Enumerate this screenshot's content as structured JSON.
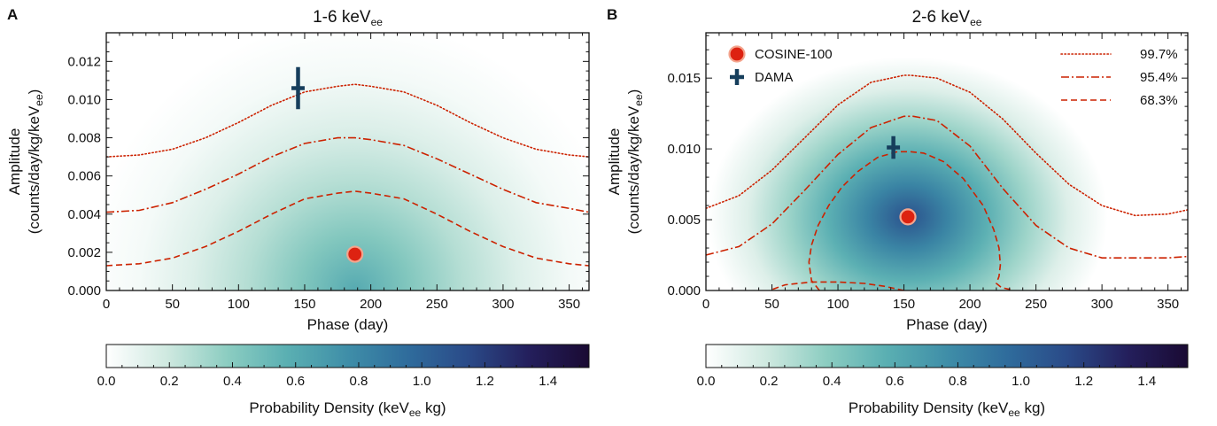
{
  "chart_data": [
    {
      "panel": "A",
      "type": "heatmap",
      "title": "1-6 keV",
      "title_sub": "ee",
      "xlabel": "Phase (day)",
      "ylabel_line1": "Amplitude",
      "ylabel_line2": "(counts/day/kg/keV",
      "ylabel_sub": "ee",
      "ylabel_tail": ")",
      "xlim": [
        0,
        365
      ],
      "ylim": [
        0,
        0.0135
      ],
      "xticks": [
        0,
        50,
        100,
        150,
        200,
        250,
        300,
        350
      ],
      "yticks": [
        0.0,
        0.002,
        0.004,
        0.006,
        0.008,
        0.01,
        0.012
      ],
      "ytick_decimals": 3,
      "density_peak": {
        "phase": 188,
        "amplitude": 0.0,
        "density": 0.6
      },
      "contours": [
        {
          "level": "99.7%",
          "style": "dotted",
          "phase": [
            0,
            25,
            50,
            75,
            100,
            125,
            150,
            175,
            188,
            200,
            225,
            250,
            275,
            300,
            325,
            350,
            365
          ],
          "amplitude": [
            0.007,
            0.0071,
            0.0074,
            0.008,
            0.0088,
            0.0097,
            0.0104,
            0.0107,
            0.0108,
            0.0107,
            0.0104,
            0.0097,
            0.0088,
            0.008,
            0.0074,
            0.0071,
            0.007
          ]
        },
        {
          "level": "95.4%",
          "style": "dashdot",
          "phase": [
            0,
            25,
            50,
            75,
            100,
            125,
            150,
            175,
            188,
            200,
            225,
            250,
            275,
            300,
            325,
            350,
            365
          ],
          "amplitude": [
            0.0041,
            0.0042,
            0.0046,
            0.0053,
            0.0061,
            0.007,
            0.0077,
            0.008,
            0.008,
            0.0079,
            0.0076,
            0.0069,
            0.0061,
            0.0053,
            0.0046,
            0.0043,
            0.0041
          ]
        },
        {
          "level": "68.3%",
          "style": "dashed",
          "phase": [
            0,
            25,
            50,
            75,
            100,
            125,
            150,
            175,
            188,
            200,
            225,
            250,
            275,
            300,
            325,
            350,
            365
          ],
          "amplitude": [
            0.0013,
            0.0014,
            0.0017,
            0.0023,
            0.0031,
            0.004,
            0.0048,
            0.0051,
            0.0052,
            0.0051,
            0.0048,
            0.004,
            0.0031,
            0.0023,
            0.0017,
            0.0014,
            0.0013
          ]
        }
      ],
      "points": [
        {
          "name": "COSINE-100",
          "marker": "circle",
          "phase": 188,
          "amplitude": 0.0019
        },
        {
          "name": "DAMA",
          "marker": "cross",
          "phase": 145,
          "amplitude": 0.0106,
          "xerr": 2,
          "yerr": 0.0011
        }
      ],
      "colorbar": {
        "label": "Probability Density (keV",
        "label_sub": "ee",
        "label_tail": " kg)",
        "range": [
          0,
          1.53
        ],
        "ticks": [
          0.0,
          0.2,
          0.4,
          0.6,
          0.8,
          1.0,
          1.2,
          1.4
        ]
      }
    },
    {
      "panel": "B",
      "type": "heatmap",
      "title": "2-6 keV",
      "title_sub": "ee",
      "xlabel": "Phase (day)",
      "ylabel_line1": "Amplitude",
      "ylabel_line2": "(counts/day/kg/keV",
      "ylabel_sub": "ee",
      "ylabel_tail": ")",
      "xlim": [
        0,
        365
      ],
      "ylim": [
        0,
        0.0182
      ],
      "xticks": [
        0,
        50,
        100,
        150,
        200,
        250,
        300,
        350
      ],
      "yticks": [
        0.0,
        0.005,
        0.01,
        0.015
      ],
      "ytick_decimals": 3,
      "density_peak": {
        "phase": 153,
        "amplitude": 0.0052,
        "density": 1.1
      },
      "contours": [
        {
          "level": "99.7%",
          "style": "dotted",
          "phase": [
            0,
            25,
            50,
            75,
            100,
            125,
            150,
            155,
            175,
            200,
            225,
            250,
            275,
            300,
            325,
            350,
            365
          ],
          "amplitude": [
            0.0058,
            0.0067,
            0.0085,
            0.0108,
            0.0131,
            0.0147,
            0.0152,
            0.0152,
            0.015,
            0.014,
            0.0121,
            0.0097,
            0.0075,
            0.006,
            0.0053,
            0.0054,
            0.0057
          ]
        },
        {
          "level": "95.4%",
          "style": "dashdot",
          "phase": [
            0,
            25,
            50,
            75,
            100,
            125,
            150,
            157,
            175,
            200,
            225,
            250,
            275,
            300,
            325,
            350,
            365
          ],
          "amplitude": [
            0.0025,
            0.0031,
            0.0047,
            0.0071,
            0.0096,
            0.0115,
            0.0123,
            0.0123,
            0.012,
            0.0102,
            0.0072,
            0.0046,
            0.003,
            0.0023,
            0.0023,
            0.0023,
            0.0024
          ]
        },
        {
          "level": "68.3%",
          "style": "dashed",
          "phase": [
            86,
            80,
            78,
            80,
            85,
            93,
            103,
            115,
            130,
            145,
            155,
            165,
            180,
            195,
            210,
            218,
            222,
            223,
            222,
            220,
            224,
            229,
            230,
            232
          ],
          "amplitude": [
            0.0,
            0.0007,
            0.002,
            0.0032,
            0.0046,
            0.006,
            0.0073,
            0.0084,
            0.0094,
            0.0098,
            0.0098,
            0.0097,
            0.0091,
            0.0079,
            0.006,
            0.0043,
            0.003,
            0.0018,
            0.001,
            0.0005,
            0.0002,
            0.0001,
            0.0001,
            0.0
          ]
        },
        {
          "level": "",
          "style": "dashed",
          "phase": [
            150,
            135,
            120,
            100,
            80,
            60,
            48
          ],
          "amplitude": [
            0.0,
            0.0003,
            0.0005,
            0.0006,
            0.0006,
            0.0004,
            0.0
          ]
        }
      ],
      "points": [
        {
          "name": "COSINE-100",
          "marker": "circle",
          "phase": 153,
          "amplitude": 0.0052
        },
        {
          "name": "DAMA",
          "marker": "cross",
          "phase": 142,
          "amplitude": 0.0101,
          "xerr": 2,
          "yerr": 0.0008
        }
      ],
      "legend_markers": [
        {
          "label": "COSINE-100",
          "marker": "circle"
        },
        {
          "label": "DAMA",
          "marker": "cross"
        }
      ],
      "legend_lines": [
        {
          "label": "99.7%",
          "style": "dotted"
        },
        {
          "label": "95.4%",
          "style": "dashdot"
        },
        {
          "label": "68.3%",
          "style": "dashed"
        }
      ],
      "colorbar": {
        "label": "Probability Density (keV",
        "label_sub": "ee",
        "label_tail": " kg)",
        "range": [
          0,
          1.53
        ],
        "ticks": [
          0.0,
          0.2,
          0.4,
          0.6,
          0.8,
          1.0,
          1.2,
          1.4
        ]
      }
    }
  ],
  "colors": {
    "contour": "#cc2200",
    "cosine_fill": "#dd2211",
    "cosine_edge": "#f4a58e",
    "dama": "#163e5c",
    "colormap": [
      "#ffffff",
      "#cfe9e0",
      "#8ccdc1",
      "#5aafb2",
      "#3f8ea8",
      "#2f6c9c",
      "#2a4a88",
      "#241f5c",
      "#1a0a33"
    ]
  }
}
